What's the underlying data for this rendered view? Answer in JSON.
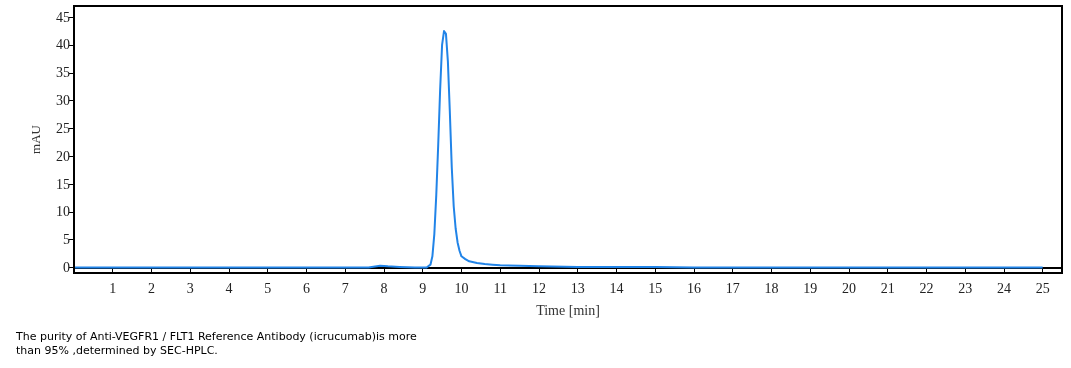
{
  "chart_data": {
    "type": "line",
    "xlabel": "Time [min]",
    "ylabel": "mAU",
    "annotations": [
      "The purity of Anti-VEGFR1 / FLT1 Reference Antibody (icrucumab)is more than 95% ,determined by SEC-HPLC."
    ],
    "xlim": [
      0,
      25.5
    ],
    "ylim": [
      -1,
      47
    ],
    "xticks": [
      1,
      2,
      3,
      4,
      5,
      6,
      7,
      8,
      9,
      10,
      11,
      12,
      13,
      14,
      15,
      16,
      17,
      18,
      19,
      20,
      21,
      22,
      23,
      24,
      25
    ],
    "yticks": [
      0,
      5,
      10,
      15,
      20,
      25,
      30,
      35,
      40,
      45
    ],
    "marker": "none",
    "line_style": "solid",
    "series": [
      {
        "color": "#2184e8",
        "x": [
          0,
          1,
          2,
          3,
          4,
          5,
          6,
          7,
          7.6,
          7.9,
          8.1,
          8.4,
          8.8,
          9.1,
          9.2,
          9.25,
          9.3,
          9.35,
          9.4,
          9.45,
          9.5,
          9.55,
          9.6,
          9.65,
          9.7,
          9.75,
          9.8,
          9.85,
          9.9,
          9.95,
          10,
          10.1,
          10.2,
          10.4,
          10.6,
          10.8,
          11,
          11.5,
          12,
          13,
          14,
          15,
          16,
          17,
          18,
          19,
          20,
          21,
          22,
          23,
          24,
          25
        ],
        "values": [
          0,
          0,
          0,
          0,
          0,
          0,
          0,
          0,
          0,
          0.3,
          0.2,
          0.1,
          0,
          0,
          0.5,
          2,
          6,
          13,
          22,
          32,
          40,
          42.5,
          42,
          37,
          28,
          18,
          11,
          7,
          4.5,
          3,
          2,
          1.5,
          1.1,
          0.8,
          0.6,
          0.5,
          0.4,
          0.3,
          0.2,
          0.1,
          0.1,
          0.1,
          0,
          0,
          0,
          0,
          0,
          0,
          0,
          0,
          0,
          0
        ]
      }
    ]
  }
}
